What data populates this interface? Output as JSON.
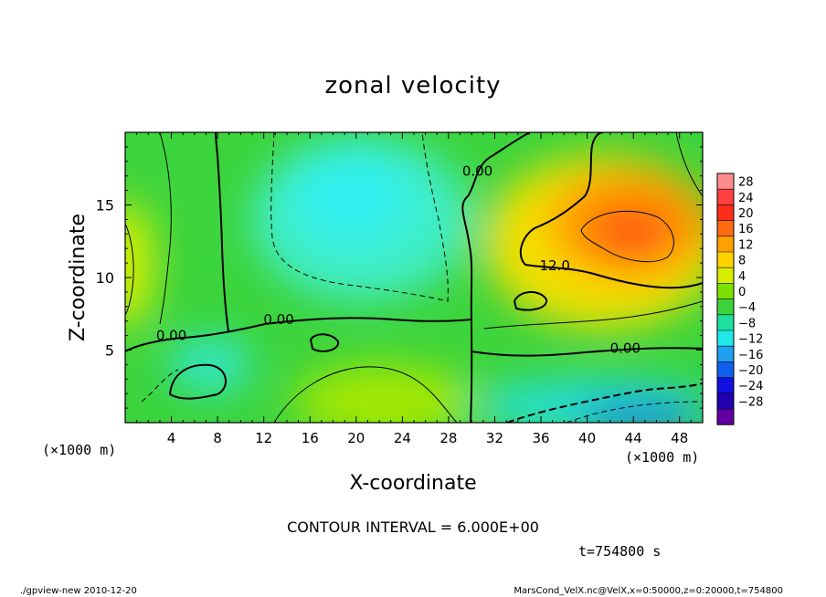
{
  "chart_data": {
    "type": "contour",
    "title": "zonal velocity",
    "xlabel": "X-coordinate",
    "ylabel": "Z-coordinate",
    "x_unit": "(×1000 m)",
    "y_unit": "(×1000 m)",
    "xlim": [
      0,
      50
    ],
    "ylim": [
      0,
      20
    ],
    "xticks": [
      4,
      8,
      12,
      16,
      20,
      24,
      28,
      32,
      36,
      40,
      44,
      48
    ],
    "yticks": [
      5,
      10,
      15
    ],
    "contour_labels": [
      {
        "text": "0.00",
        "x": 30.5,
        "z": 17.0
      },
      {
        "text": "12.0",
        "x": 37.2,
        "z": 10.5
      },
      {
        "text": "0.00",
        "x": 13.3,
        "z": 6.8
      },
      {
        "text": "0.00",
        "x": 4.0,
        "z": 5.7
      },
      {
        "text": "0.00",
        "x": 43.3,
        "z": 4.8
      }
    ],
    "colorbar": {
      "levels": [
        28,
        24,
        20,
        16,
        12,
        8,
        4,
        0,
        -4,
        -8,
        -12,
        -16,
        -20,
        -24,
        -28
      ],
      "colors": [
        "#ff8c8c",
        "#ff4040",
        "#ff2d1a",
        "#ff6a10",
        "#ffa000",
        "#ffd200",
        "#d8ee00",
        "#7ee000",
        "#3cd43c",
        "#20e0a0",
        "#20e8e8",
        "#20a0f0",
        "#1060f0",
        "#1010e0",
        "#2000b0",
        "#6000a0"
      ]
    },
    "field_samples_xz": [
      {
        "x": 2,
        "z": 2,
        "u": -2
      },
      {
        "x": 20,
        "z": 15,
        "u": -10
      },
      {
        "x": 21,
        "z": 2,
        "u": 5
      },
      {
        "x": 43,
        "z": 13,
        "u": 18
      },
      {
        "x": 47,
        "z": 1,
        "u": -18
      },
      {
        "x": 0,
        "z": 11,
        "u": 10
      }
    ],
    "contour_interval_text": "CONTOUR INTERVAL = 6.000E+00",
    "time_text": "t=754800 s",
    "footer_left": "./gpview-new  2010-12-20",
    "footer_right": "MarsCond_VelX.nc@VelX,x=0:50000,z=0:20000,t=754800"
  }
}
